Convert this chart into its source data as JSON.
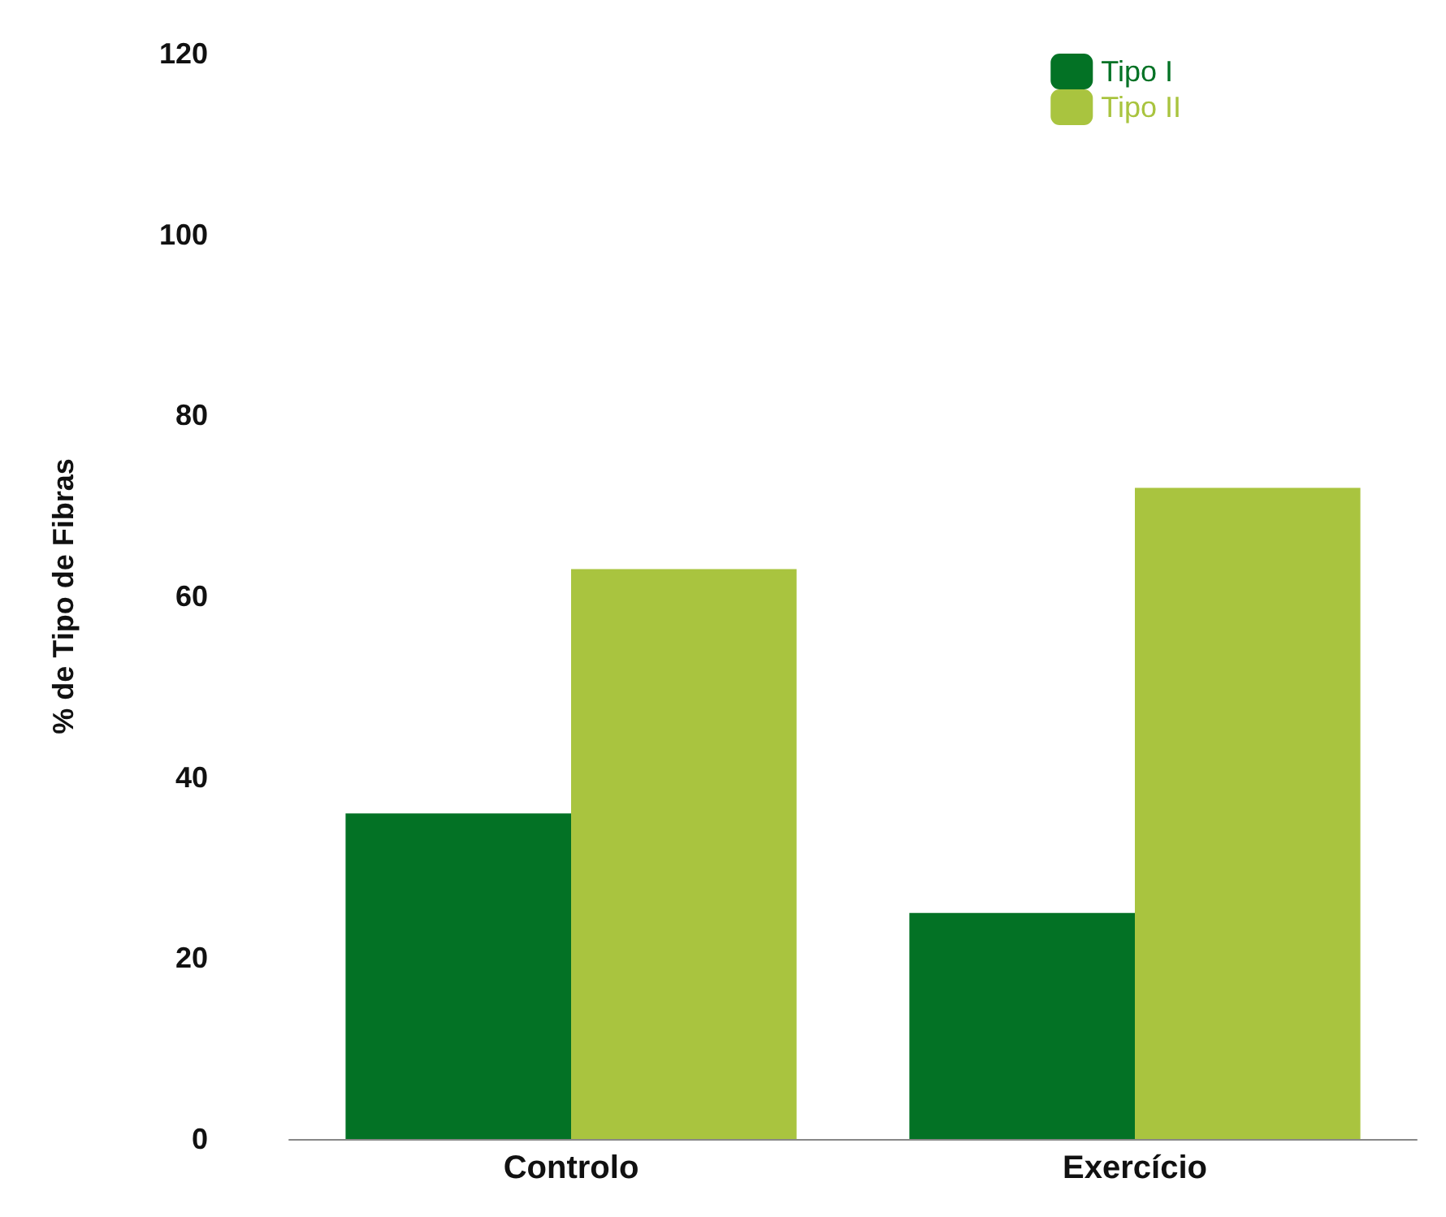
{
  "chart_data": {
    "type": "bar",
    "ylabel": "% de Tipo de Fibras",
    "categories": [
      "Controlo",
      "Exercício"
    ],
    "series": [
      {
        "name": "Tipo I",
        "color": "#037225",
        "values": [
          36,
          25
        ]
      },
      {
        "name": "Tipo II",
        "color": "#a9c43f",
        "values": [
          63,
          72
        ]
      }
    ],
    "ylim": [
      0,
      120
    ],
    "yticks": [
      0,
      20,
      40,
      60,
      80,
      100,
      120
    ],
    "grid": false,
    "legend": "top right"
  }
}
